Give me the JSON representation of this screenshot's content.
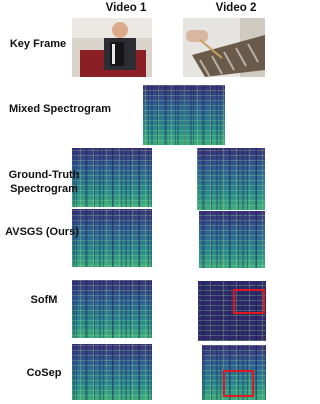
{
  "header": {
    "columns": [
      "Video 1",
      "Video 2"
    ]
  },
  "rows": [
    {
      "lines": [
        "Key Frame"
      ]
    },
    {
      "lines": [
        "Mixed Spectrogram"
      ]
    },
    {
      "lines": [
        "Ground-Truth",
        "Spectrogram"
      ]
    },
    {
      "lines": [
        "AVSGS (Ours)"
      ]
    },
    {
      "lines": [
        "SofM"
      ]
    },
    {
      "lines": [
        "CoSep"
      ]
    }
  ]
}
